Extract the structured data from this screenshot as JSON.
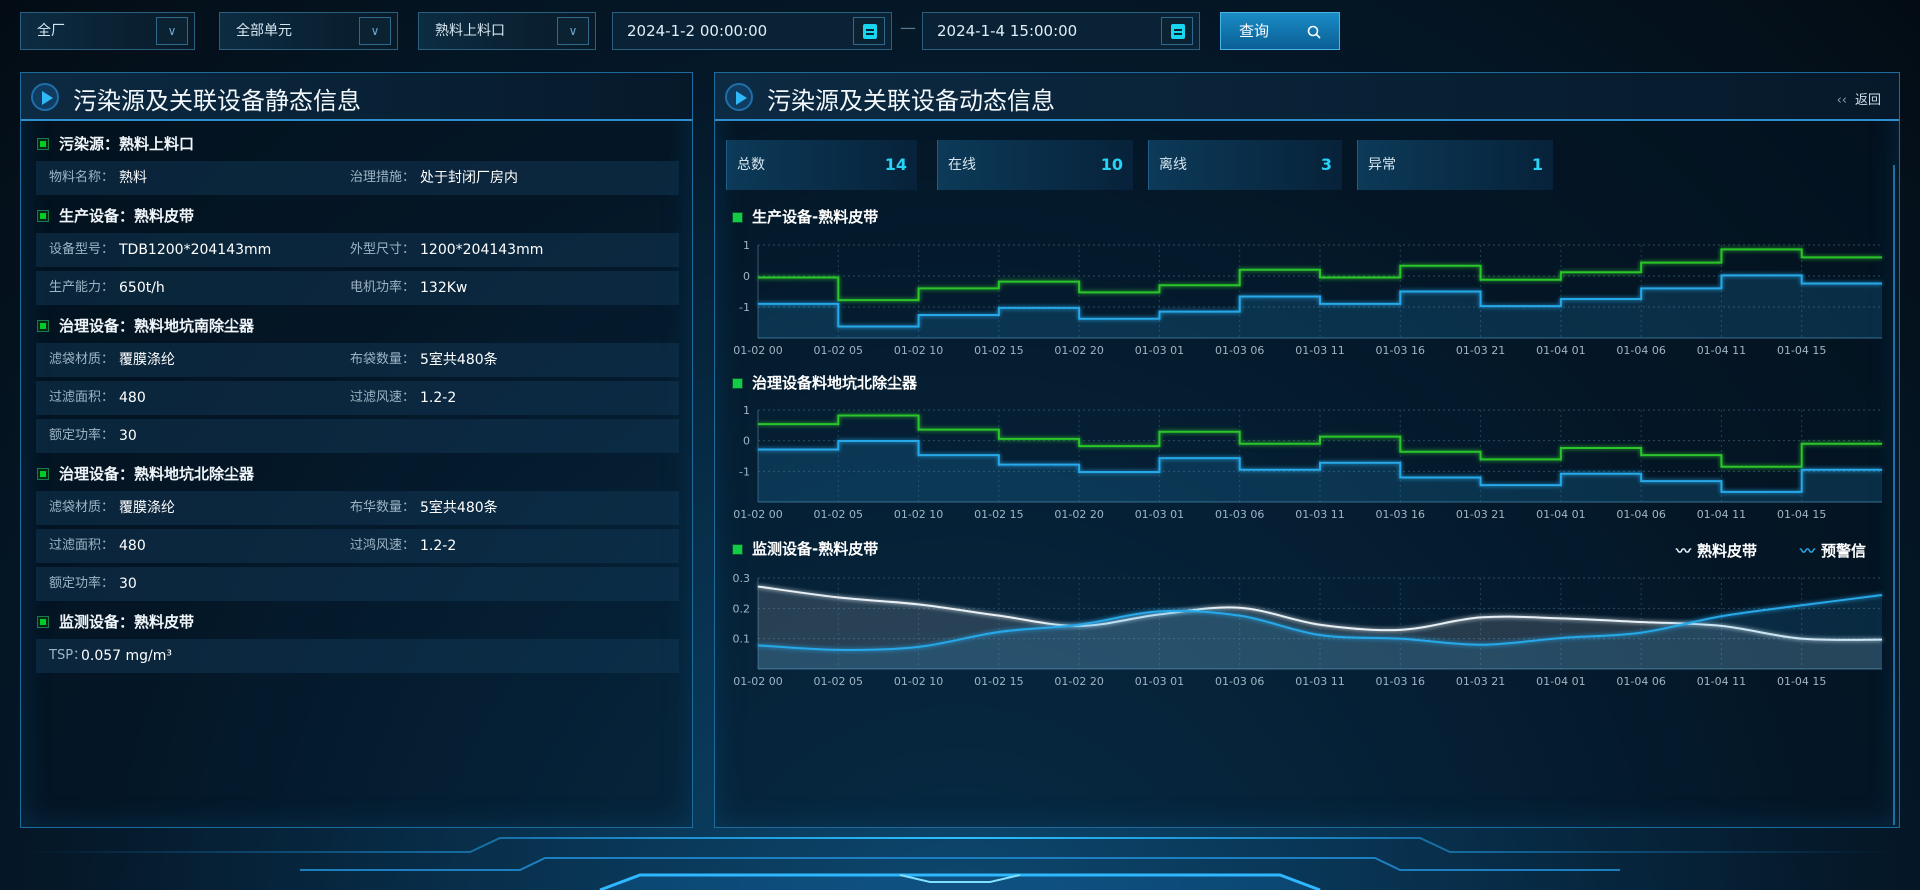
{
  "filters": {
    "plant": "全厂",
    "unit": "全部单元",
    "source": "熟料上料口",
    "start_date": "2024-1-2 00:00:00",
    "end_date": "2024-1-4 15:00:00",
    "separator": "—",
    "query_label": "查询",
    "icons": {
      "dropdown": "chevron-down-icon",
      "calendar": "calendar-icon",
      "search": "search-icon"
    }
  },
  "static_panel": {
    "title": "污染源及关联设备静态信息",
    "sections": [
      {
        "title": "污染源：熟料上料口",
        "rows": [
          [
            {
              "label": "物料名称：",
              "value": "熟料"
            },
            {
              "label": "治理措施：",
              "value": "处于封闭厂房内"
            }
          ]
        ]
      },
      {
        "title": "生产设备：熟料皮带",
        "rows": [
          [
            {
              "label": "设备型号：",
              "value": "TDB1200*204143mm"
            },
            {
              "label": "外型尺寸：",
              "value": "1200*204143mm"
            }
          ],
          [
            {
              "label": "生产能力：",
              "value": "650t/h"
            },
            {
              "label": "电机功率：",
              "value": "132Kw"
            }
          ]
        ]
      },
      {
        "title": "治理设备：熟料地坑南除尘器",
        "rows": [
          [
            {
              "label": "滤袋材质：",
              "value": "覆膜涤纶"
            },
            {
              "label": "布袋数量：",
              "value": "5室共480条"
            }
          ],
          [
            {
              "label": "过滤面积：",
              "value": "480"
            },
            {
              "label": "过滤风速：",
              "value": "1.2-2"
            }
          ],
          [
            {
              "label": "额定功率：",
              "value": "30"
            }
          ]
        ]
      },
      {
        "title": "治理设备：熟料地坑北除尘器",
        "rows": [
          [
            {
              "label": "滤袋材质：",
              "value": "覆膜涤纶"
            },
            {
              "label": "布华数量：",
              "value": "5室共480条"
            }
          ],
          [
            {
              "label": "过滤面积：",
              "value": "480"
            },
            {
              "label": "过鸿风速：",
              "value": "1.2-2"
            }
          ],
          [
            {
              "label": "额定功率：",
              "value": "30"
            }
          ]
        ]
      },
      {
        "title": "监测设备：熟料皮带",
        "rows": [
          [
            {
              "label": "TSP：",
              "value": "0.057 mg/m³"
            }
          ]
        ]
      }
    ]
  },
  "dynamic_panel": {
    "title": "污染源及关联设备动态信息",
    "back_label": "返回",
    "stats": [
      {
        "label": "总数",
        "value": "14"
      },
      {
        "label": "在线",
        "value": "10"
      },
      {
        "label": "离线",
        "value": "3"
      },
      {
        "label": "异常",
        "value": "1"
      }
    ]
  },
  "colors": {
    "green": "#2bc52b",
    "blue": "#27a8e8",
    "white": "#e8f0f5",
    "accent": "#27d3f5"
  },
  "chart_data": [
    {
      "type": "line",
      "step": true,
      "title": "生产设备-熟料皮带",
      "categories": [
        "01-02 00",
        "01-02 05",
        "01-02 10",
        "01-02 15",
        "01-02 20",
        "01-03 01",
        "01-03 06",
        "01-03 11",
        "01-03 16",
        "01-03 21",
        "01-04 01",
        "01-04 06",
        "01-04 11",
        "01-04 15"
      ],
      "yticks": [
        "1",
        "0",
        "-1"
      ],
      "ylim": [
        -2,
        1
      ],
      "grid": true,
      "series": [
        {
          "color": "#2bc52b",
          "values": [
            -0.05,
            -0.78,
            -0.4,
            -0.18,
            -0.53,
            -0.3,
            0.2,
            -0.05,
            0.33,
            -0.12,
            0.12,
            0.43,
            0.86,
            0.6
          ]
        },
        {
          "color": "#27a8e8",
          "area": true,
          "values": [
            -0.9,
            -1.63,
            -1.26,
            -1.03,
            -1.38,
            -1.15,
            -0.66,
            -0.9,
            -0.5,
            -0.97,
            -0.74,
            -0.4,
            0.02,
            -0.24
          ]
        }
      ]
    },
    {
      "type": "line",
      "step": true,
      "title": "治理设备料地坑北除尘器",
      "categories": [
        "01-02 00",
        "01-02 05",
        "01-02 10",
        "01-02 15",
        "01-02 20",
        "01-03 01",
        "01-03 06",
        "01-03 11",
        "01-03 16",
        "01-03 21",
        "01-04 01",
        "01-04 06",
        "01-04 11",
        "01-04 15"
      ],
      "yticks": [
        "1",
        "0",
        "-1"
      ],
      "ylim": [
        -2,
        1
      ],
      "grid": true,
      "series": [
        {
          "color": "#2bc52b",
          "values": [
            0.54,
            0.82,
            0.36,
            0.06,
            -0.18,
            0.29,
            -0.1,
            0.13,
            -0.36,
            -0.61,
            -0.24,
            -0.47,
            -0.85,
            -0.1
          ]
        },
        {
          "color": "#27a8e8",
          "area": true,
          "values": [
            -0.29,
            -0.01,
            -0.47,
            -0.78,
            -1.02,
            -0.57,
            -0.95,
            -0.72,
            -1.2,
            -1.45,
            -1.08,
            -1.32,
            -1.67,
            -0.95
          ]
        }
      ]
    },
    {
      "type": "area",
      "smooth": true,
      "title": "监测设备-熟料皮带",
      "categories": [
        "01-02 00",
        "01-02 05",
        "01-02 10",
        "01-02 15",
        "01-02 20",
        "01-03 01",
        "01-03 06",
        "01-03 11",
        "01-03 16",
        "01-03 21",
        "01-04 01",
        "01-04 06",
        "01-04 11",
        "01-04 15"
      ],
      "yticks": [
        "0.3",
        "0.2",
        "0.1"
      ],
      "ylim": [
        0,
        0.3
      ],
      "grid": true,
      "legend": "top-right",
      "series": [
        {
          "name": "熟料皮带",
          "color": "#e8f0f5",
          "values": [
            0.272,
            0.236,
            0.213,
            0.176,
            0.142,
            0.18,
            0.202,
            0.146,
            0.129,
            0.17,
            0.167,
            0.155,
            0.142,
            0.1
          ],
          "end_value": 0.097
        },
        {
          "name": "预警信",
          "color": "#27a8e8",
          "values": [
            0.078,
            0.063,
            0.073,
            0.122,
            0.146,
            0.19,
            0.176,
            0.112,
            0.1,
            0.08,
            0.102,
            0.12,
            0.174,
            0.21
          ],
          "end_value": 0.244
        }
      ]
    }
  ]
}
